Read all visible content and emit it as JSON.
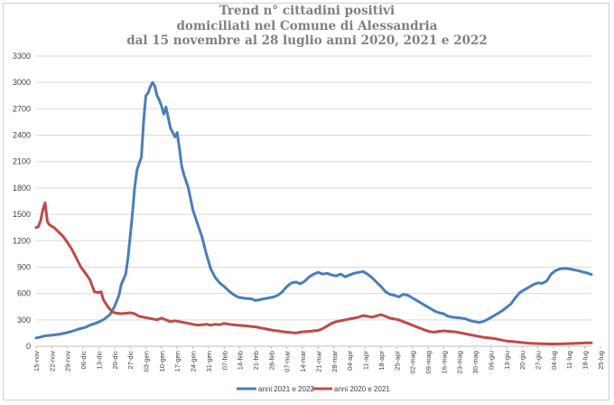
{
  "chart_data": {
    "type": "line",
    "title": [
      "Trend n° cittadini positivi",
      "domiciliati nel Comune di Alessandria",
      "dal 15 novembre al 28 luglio anni 2020, 2021 e 2022"
    ],
    "xlabel": "",
    "ylabel": "",
    "ylim": [
      0,
      3300
    ],
    "yticks": [
      0,
      300,
      600,
      900,
      1200,
      1500,
      1800,
      2100,
      2400,
      2700,
      3000,
      3300
    ],
    "grid": true,
    "legend_position": "bottom",
    "categories": [
      "15-nov",
      "22-nov",
      "29-nov",
      "06-dic",
      "13-dic",
      "20-dic",
      "27-dic",
      "03-gen",
      "10-gen",
      "17-gen",
      "24-gen",
      "31-gen",
      "07-feb",
      "14-feb",
      "21-feb",
      "28-feb",
      "07-mar",
      "14-mar",
      "21-mar",
      "28-mar",
      "04-apr",
      "11-apr",
      "18-apr",
      "25-apr",
      "02-mag",
      "09-mag",
      "16-mag",
      "23-mag",
      "30-mag",
      "06-giu",
      "13-giu",
      "20-giu",
      "27-giu",
      "04-lug",
      "11-lug",
      "18-lug",
      "25-lug"
    ],
    "series": [
      {
        "name": "anni 2021 e 2022",
        "color": "#4a7ebb",
        "points": [
          [
            0,
            95
          ],
          [
            2,
            105
          ],
          [
            4,
            118
          ],
          [
            7,
            125
          ],
          [
            10,
            135
          ],
          [
            13,
            150
          ],
          [
            16,
            170
          ],
          [
            19,
            195
          ],
          [
            22,
            215
          ],
          [
            24,
            240
          ],
          [
            27,
            265
          ],
          [
            30,
            300
          ],
          [
            33,
            360
          ],
          [
            35,
            450
          ],
          [
            37,
            580
          ],
          [
            38,
            700
          ],
          [
            39,
            760
          ],
          [
            40,
            820
          ],
          [
            41,
            1000
          ],
          [
            42,
            1250
          ],
          [
            43,
            1500
          ],
          [
            44,
            1800
          ],
          [
            45,
            2000
          ],
          [
            46,
            2080
          ],
          [
            47,
            2150
          ],
          [
            48,
            2550
          ],
          [
            49,
            2850
          ],
          [
            50,
            2880
          ],
          [
            51,
            2950
          ],
          [
            52,
            3000
          ],
          [
            53,
            2960
          ],
          [
            54,
            2850
          ],
          [
            55,
            2800
          ],
          [
            56,
            2730
          ],
          [
            57,
            2640
          ],
          [
            58,
            2720
          ],
          [
            59,
            2600
          ],
          [
            60,
            2480
          ],
          [
            61,
            2430
          ],
          [
            62,
            2380
          ],
          [
            63,
            2430
          ],
          [
            64,
            2250
          ],
          [
            65,
            2050
          ],
          [
            66,
            1950
          ],
          [
            68,
            1800
          ],
          [
            70,
            1550
          ],
          [
            72,
            1400
          ],
          [
            74,
            1250
          ],
          [
            76,
            1050
          ],
          [
            78,
            880
          ],
          [
            80,
            780
          ],
          [
            82,
            720
          ],
          [
            84,
            680
          ],
          [
            86,
            630
          ],
          [
            88,
            590
          ],
          [
            90,
            560
          ],
          [
            93,
            545
          ],
          [
            96,
            540
          ],
          [
            98,
            520
          ],
          [
            100,
            530
          ],
          [
            103,
            545
          ],
          [
            106,
            560
          ],
          [
            108,
            580
          ],
          [
            110,
            620
          ],
          [
            112,
            680
          ],
          [
            114,
            720
          ],
          [
            116,
            730
          ],
          [
            118,
            710
          ],
          [
            120,
            740
          ],
          [
            122,
            790
          ],
          [
            124,
            820
          ],
          [
            126,
            840
          ],
          [
            128,
            820
          ],
          [
            130,
            830
          ],
          [
            132,
            810
          ],
          [
            134,
            800
          ],
          [
            136,
            820
          ],
          [
            138,
            790
          ],
          [
            140,
            810
          ],
          [
            142,
            830
          ],
          [
            144,
            840
          ],
          [
            146,
            850
          ],
          [
            148,
            820
          ],
          [
            150,
            780
          ],
          [
            152,
            730
          ],
          [
            154,
            680
          ],
          [
            156,
            620
          ],
          [
            158,
            590
          ],
          [
            160,
            580
          ],
          [
            162,
            560
          ],
          [
            164,
            590
          ],
          [
            166,
            580
          ],
          [
            168,
            550
          ],
          [
            170,
            520
          ],
          [
            172,
            490
          ],
          [
            174,
            460
          ],
          [
            176,
            430
          ],
          [
            178,
            400
          ],
          [
            180,
            380
          ],
          [
            182,
            370
          ],
          [
            184,
            340
          ],
          [
            186,
            330
          ],
          [
            188,
            325
          ],
          [
            190,
            320
          ],
          [
            192,
            310
          ],
          [
            194,
            290
          ],
          [
            196,
            280
          ],
          [
            198,
            270
          ],
          [
            200,
            285
          ],
          [
            202,
            310
          ],
          [
            204,
            340
          ],
          [
            206,
            370
          ],
          [
            208,
            400
          ],
          [
            210,
            440
          ],
          [
            212,
            480
          ],
          [
            214,
            550
          ],
          [
            216,
            610
          ],
          [
            218,
            640
          ],
          [
            220,
            670
          ],
          [
            222,
            700
          ],
          [
            224,
            720
          ],
          [
            226,
            715
          ],
          [
            228,
            740
          ],
          [
            230,
            820
          ],
          [
            232,
            860
          ],
          [
            234,
            880
          ],
          [
            236,
            885
          ],
          [
            238,
            880
          ],
          [
            240,
            870
          ],
          [
            242,
            860
          ],
          [
            244,
            845
          ],
          [
            246,
            835
          ],
          [
            248,
            815
          ]
        ]
      },
      {
        "name": "anni 2020 e 2021",
        "color": "#be4b48",
        "points": [
          [
            0,
            1350
          ],
          [
            1,
            1360
          ],
          [
            2,
            1430
          ],
          [
            3,
            1550
          ],
          [
            4,
            1630
          ],
          [
            5,
            1420
          ],
          [
            6,
            1380
          ],
          [
            8,
            1350
          ],
          [
            10,
            1300
          ],
          [
            12,
            1250
          ],
          [
            14,
            1180
          ],
          [
            16,
            1100
          ],
          [
            18,
            1000
          ],
          [
            20,
            900
          ],
          [
            22,
            830
          ],
          [
            24,
            760
          ],
          [
            26,
            620
          ],
          [
            28,
            610
          ],
          [
            29,
            620
          ],
          [
            30,
            530
          ],
          [
            32,
            450
          ],
          [
            34,
            390
          ],
          [
            36,
            375
          ],
          [
            38,
            370
          ],
          [
            40,
            375
          ],
          [
            42,
            380
          ],
          [
            44,
            370
          ],
          [
            46,
            340
          ],
          [
            48,
            330
          ],
          [
            50,
            320
          ],
          [
            52,
            310
          ],
          [
            54,
            300
          ],
          [
            56,
            320
          ],
          [
            58,
            300
          ],
          [
            60,
            280
          ],
          [
            62,
            290
          ],
          [
            64,
            280
          ],
          [
            66,
            270
          ],
          [
            68,
            260
          ],
          [
            70,
            250
          ],
          [
            72,
            240
          ],
          [
            74,
            245
          ],
          [
            76,
            250
          ],
          [
            78,
            240
          ],
          [
            80,
            250
          ],
          [
            82,
            245
          ],
          [
            84,
            260
          ],
          [
            86,
            250
          ],
          [
            88,
            245
          ],
          [
            90,
            240
          ],
          [
            92,
            235
          ],
          [
            94,
            230
          ],
          [
            96,
            225
          ],
          [
            98,
            220
          ],
          [
            100,
            210
          ],
          [
            102,
            200
          ],
          [
            104,
            190
          ],
          [
            106,
            180
          ],
          [
            108,
            175
          ],
          [
            110,
            165
          ],
          [
            112,
            160
          ],
          [
            114,
            155
          ],
          [
            116,
            150
          ],
          [
            118,
            160
          ],
          [
            120,
            165
          ],
          [
            122,
            170
          ],
          [
            124,
            175
          ],
          [
            126,
            180
          ],
          [
            128,
            200
          ],
          [
            130,
            230
          ],
          [
            132,
            260
          ],
          [
            134,
            280
          ],
          [
            136,
            290
          ],
          [
            138,
            300
          ],
          [
            140,
            310
          ],
          [
            142,
            320
          ],
          [
            144,
            330
          ],
          [
            146,
            350
          ],
          [
            148,
            340
          ],
          [
            150,
            330
          ],
          [
            152,
            345
          ],
          [
            154,
            360
          ],
          [
            156,
            340
          ],
          [
            158,
            320
          ],
          [
            160,
            310
          ],
          [
            162,
            300
          ],
          [
            164,
            280
          ],
          [
            166,
            260
          ],
          [
            168,
            240
          ],
          [
            170,
            220
          ],
          [
            172,
            200
          ],
          [
            174,
            180
          ],
          [
            176,
            165
          ],
          [
            178,
            160
          ],
          [
            180,
            170
          ],
          [
            182,
            175
          ],
          [
            184,
            170
          ],
          [
            186,
            165
          ],
          [
            188,
            160
          ],
          [
            190,
            150
          ],
          [
            192,
            140
          ],
          [
            194,
            130
          ],
          [
            196,
            120
          ],
          [
            198,
            110
          ],
          [
            200,
            100
          ],
          [
            202,
            95
          ],
          [
            204,
            90
          ],
          [
            206,
            80
          ],
          [
            208,
            70
          ],
          [
            210,
            60
          ],
          [
            212,
            55
          ],
          [
            214,
            50
          ],
          [
            216,
            45
          ],
          [
            218,
            40
          ],
          [
            220,
            35
          ],
          [
            222,
            32
          ],
          [
            224,
            30
          ],
          [
            226,
            28
          ],
          [
            228,
            27
          ],
          [
            230,
            26
          ],
          [
            232,
            26
          ],
          [
            234,
            27
          ],
          [
            236,
            28
          ],
          [
            238,
            30
          ],
          [
            240,
            32
          ],
          [
            242,
            34
          ],
          [
            244,
            36
          ],
          [
            246,
            38
          ],
          [
            248,
            38
          ]
        ]
      }
    ],
    "x_range": [
      0,
      248
    ],
    "x_step_per_category": 7
  }
}
